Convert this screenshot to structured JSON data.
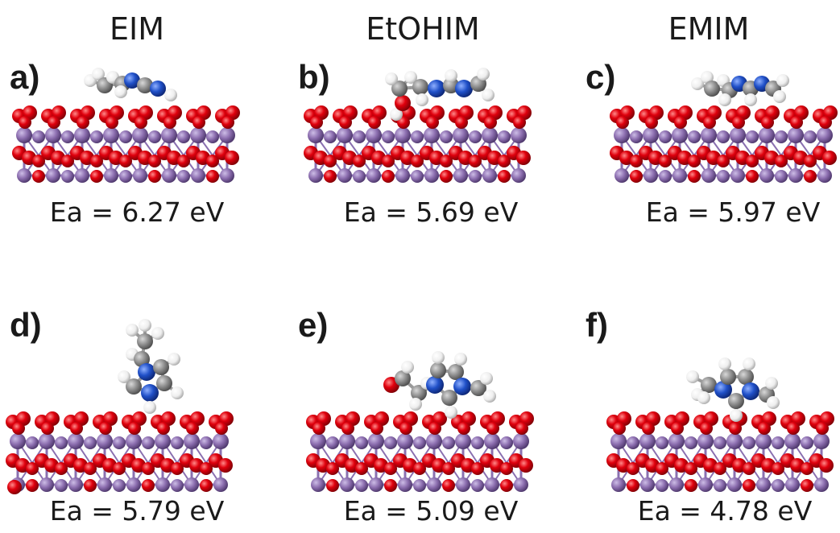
{
  "columns": [
    "EIM",
    "EtOHIM",
    "EMIM"
  ],
  "panels": [
    {
      "label": "a)",
      "energy": "Ea = 6.27 eV"
    },
    {
      "label": "b)",
      "energy": "Ea = 5.69 eV"
    },
    {
      "label": "c)",
      "energy": "Ea = 5.97 eV"
    },
    {
      "label": "d)",
      "energy": "Ea = 5.79 eV"
    },
    {
      "label": "e)",
      "energy": "Ea = 5.09 eV"
    },
    {
      "label": "f)",
      "energy": "Ea = 4.78 eV"
    }
  ],
  "colors": {
    "oxygen": "#e0000d",
    "metal": "#8d6fb0",
    "carbon": "#909090",
    "nitrogen": "#2050c8",
    "hydrogen": "#f2f2f2"
  }
}
